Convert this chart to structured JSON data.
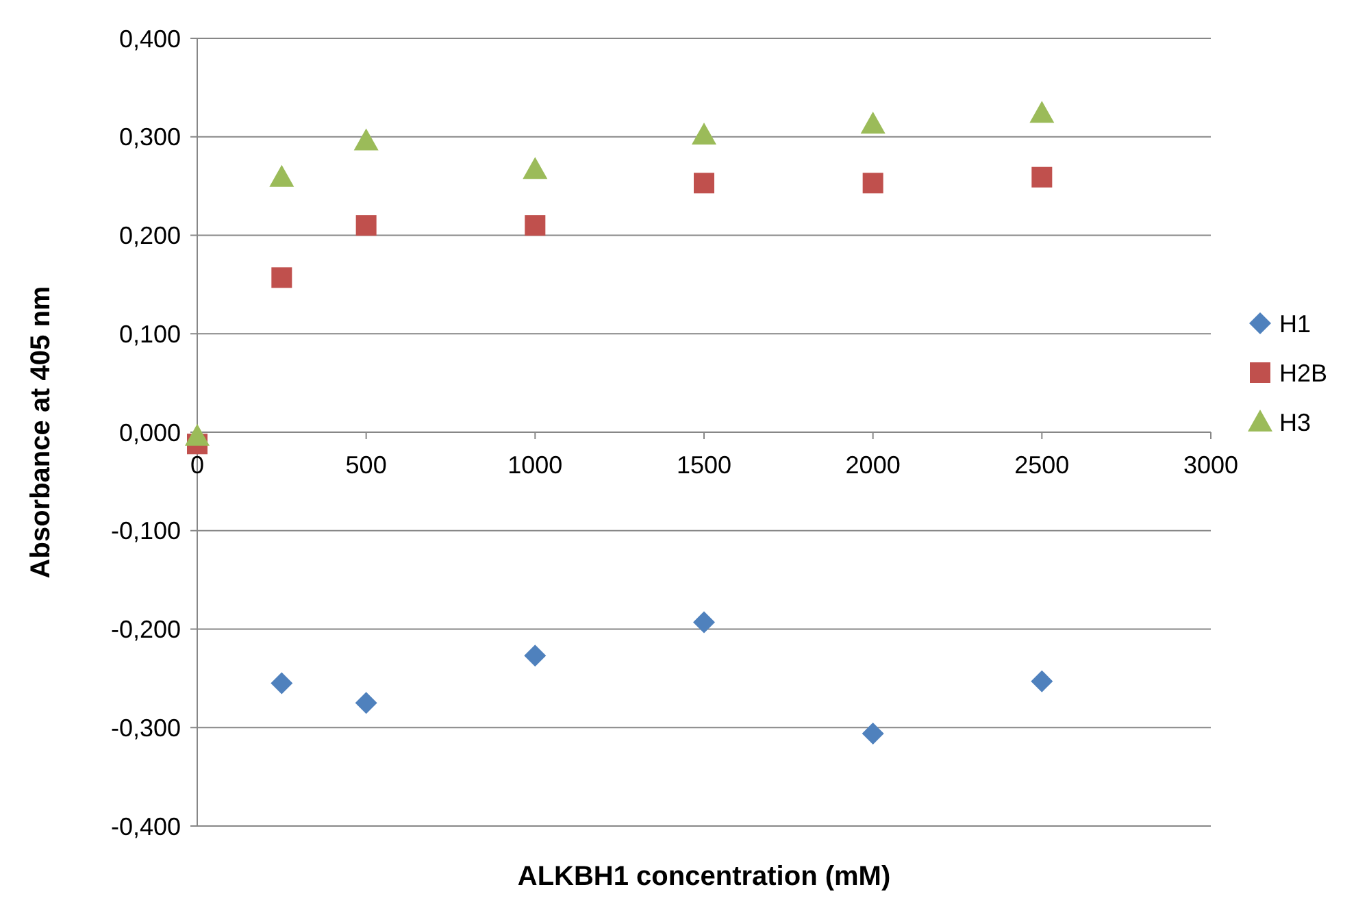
{
  "chart_data": {
    "type": "scatter",
    "xlabel": "ALKBH1 concentration (mM)",
    "ylabel": "Absorbance at 405 nm",
    "x": [
      0,
      250,
      500,
      1000,
      1500,
      2000,
      2500
    ],
    "series": [
      {
        "name": "H1",
        "color": "#4f81bd",
        "marker": "diamond",
        "values": [
          null,
          -0.255,
          -0.275,
          -0.227,
          -0.193,
          -0.306,
          -0.253
        ]
      },
      {
        "name": "H2B",
        "color": "#c0504d",
        "marker": "square",
        "values": [
          -0.012,
          0.157,
          0.21,
          0.21,
          0.253,
          0.253,
          0.259
        ]
      },
      {
        "name": "H3",
        "color": "#9bbb59",
        "marker": "triangle",
        "values": [
          -0.004,
          0.259,
          0.296,
          0.267,
          0.302,
          0.313,
          0.324
        ]
      }
    ],
    "xlim": [
      0,
      3000
    ],
    "xticks": [
      0,
      500,
      1000,
      1500,
      2000,
      2500,
      3000
    ],
    "ylim": [
      -0.4,
      0.4
    ],
    "yticks": [
      {
        "value": -0.4,
        "label": "-0,400"
      },
      {
        "value": -0.3,
        "label": "-0,300"
      },
      {
        "value": -0.2,
        "label": "-0,200"
      },
      {
        "value": -0.1,
        "label": "-0,100"
      },
      {
        "value": 0,
        "label": "0,000"
      },
      {
        "value": 0.1,
        "label": "0,100"
      },
      {
        "value": 0.2,
        "label": "0,200"
      },
      {
        "value": 0.3,
        "label": "0,300"
      },
      {
        "value": 0.4,
        "label": "0,400"
      }
    ],
    "grid": "y",
    "legend": "right"
  }
}
